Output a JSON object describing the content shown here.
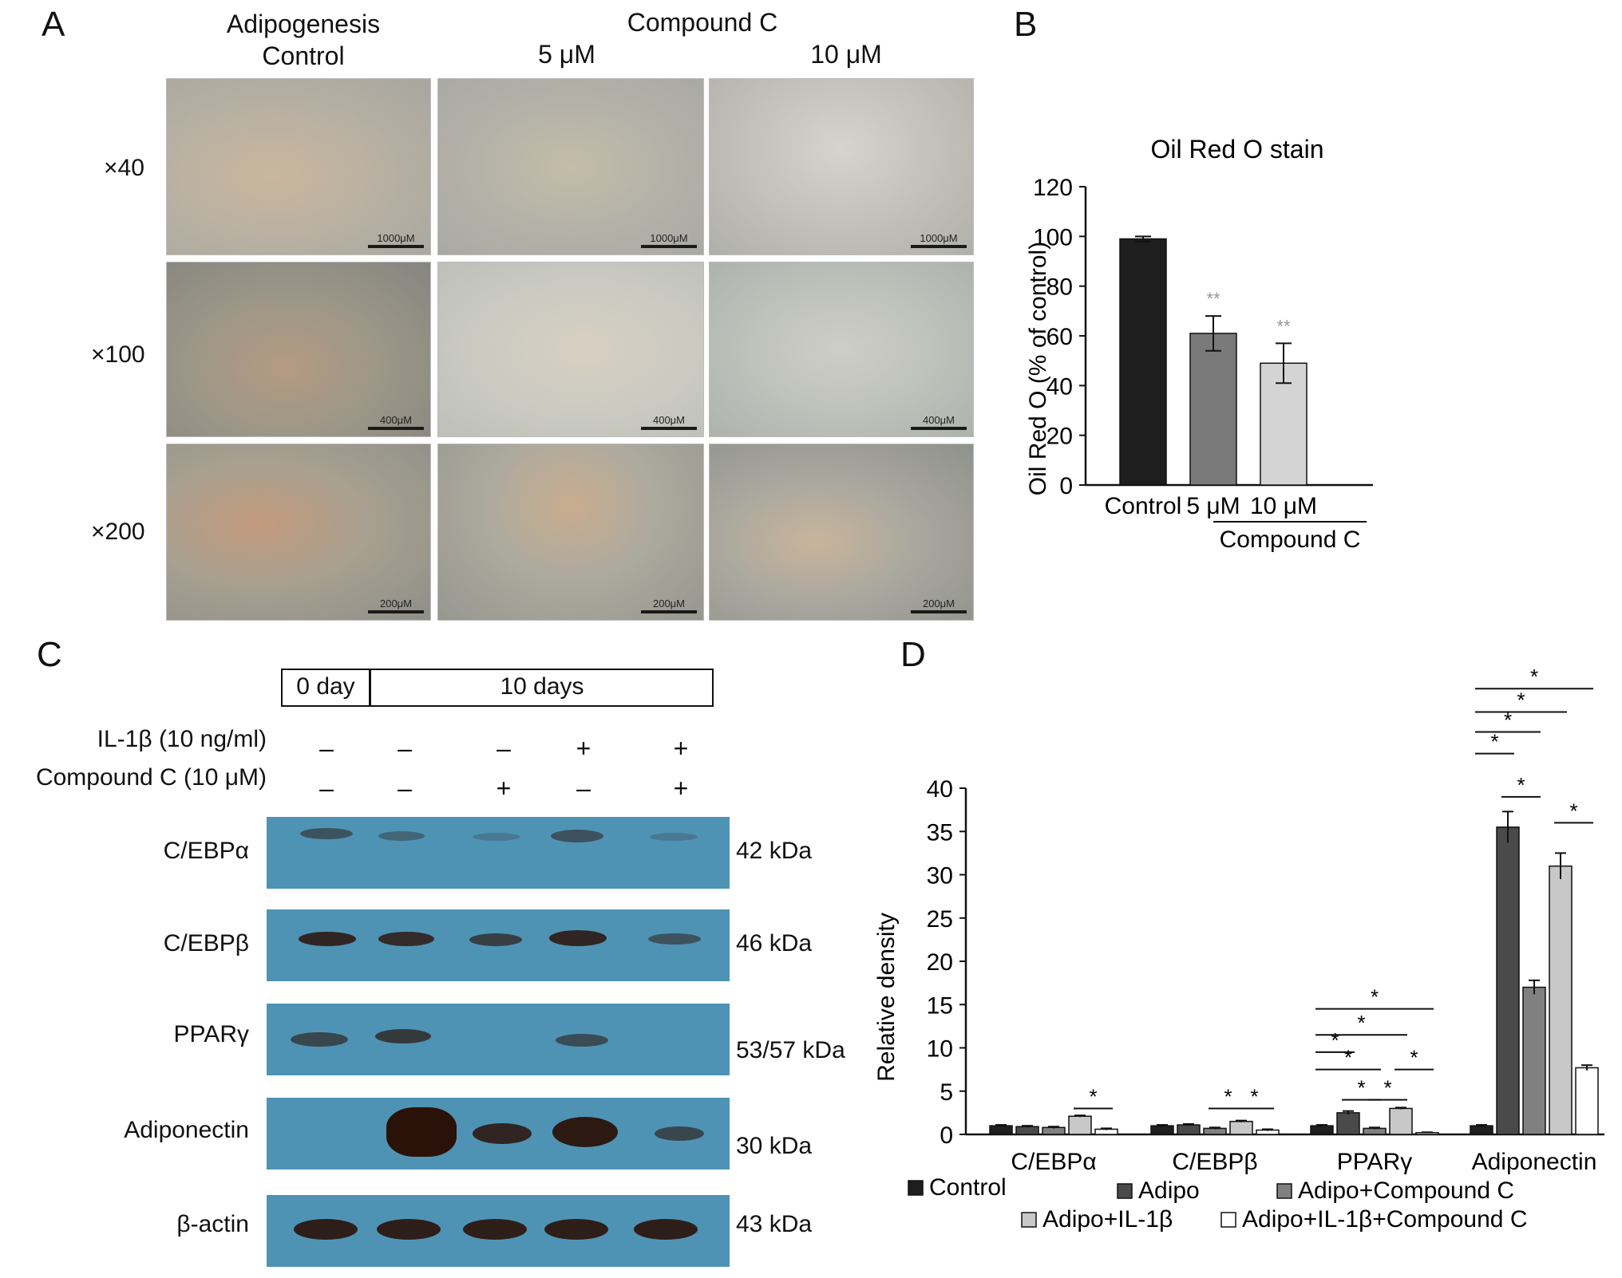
{
  "panels": {
    "a": "A",
    "b": "B",
    "c": "C",
    "d": "D"
  },
  "panelA": {
    "col_headers": [
      "Adipogenesis\nControl",
      "Compound C",
      "5 μM",
      "10 μM"
    ],
    "row_labels": [
      "×40",
      "×100",
      "×200"
    ],
    "scale_bars": [
      "1000μM",
      "400μM",
      "200μM"
    ]
  },
  "panelC": {
    "timeline": [
      "0 day",
      "10 days"
    ],
    "treatments": [
      {
        "label": "IL-1β (10 ng/ml)",
        "signs": [
          "–",
          "–",
          "–",
          "+",
          "+"
        ]
      },
      {
        "label": "Compound C (10 μM)",
        "signs": [
          "–",
          "–",
          "+",
          "–",
          "+"
        ]
      }
    ],
    "blots": [
      {
        "protein": "C/EBPα",
        "kda": "42 kDa"
      },
      {
        "protein": "C/EBPβ",
        "kda": "46 kDa"
      },
      {
        "protein": "PPARγ",
        "kda": "53/57 kDa"
      },
      {
        "protein": "Adiponectin",
        "kda": "30 kDa"
      },
      {
        "protein": "β-actin",
        "kda": "43 kDa"
      }
    ],
    "blot_color": "#4f93b4",
    "band_color": "#2a1208"
  },
  "chart_data": [
    {
      "type": "bar",
      "title": "Oil Red O stain",
      "ylabel": "Oil Red O (% of control)",
      "xlabel": "",
      "categories": [
        "Control",
        "5 μM",
        "10 μM"
      ],
      "group_label": "Compound C",
      "values": [
        99,
        61,
        49
      ],
      "errors": [
        1,
        7,
        8
      ],
      "significance": [
        "",
        "**",
        "**"
      ],
      "colors": [
        "#1e1e1e",
        "#7a7a7a",
        "#d4d4d4"
      ],
      "ylim": [
        0,
        120
      ],
      "yticks": [
        0,
        20,
        40,
        60,
        80,
        100,
        120
      ],
      "grid": false
    },
    {
      "type": "bar",
      "title": "",
      "ylabel": "Relative density",
      "xlabel": "",
      "categories": [
        "C/EBPα",
        "C/EBPβ",
        "PPARγ",
        "Adiponectin"
      ],
      "series": [
        {
          "name": "Control",
          "color": "#1e1e1e",
          "values": [
            1.0,
            1.0,
            1.0,
            1.0
          ],
          "errors": [
            0.1,
            0.1,
            0.1,
            0.1
          ]
        },
        {
          "name": "Adipo",
          "color": "#4a4a4a",
          "values": [
            0.9,
            1.1,
            2.5,
            35.5
          ],
          "errors": [
            0.1,
            0.1,
            0.2,
            1.8
          ]
        },
        {
          "name": "Adipo+Compound C",
          "color": "#808080",
          "values": [
            0.8,
            0.7,
            0.7,
            17.0
          ],
          "errors": [
            0.1,
            0.1,
            0.1,
            0.8
          ]
        },
        {
          "name": "Adipo+IL-1β",
          "color": "#c8c8c8",
          "values": [
            2.1,
            1.5,
            3.0,
            31.0
          ],
          "errors": [
            0.1,
            0.1,
            0.1,
            1.5
          ]
        },
        {
          "name": "Adipo+IL-1β+Compound C",
          "color": "#ffffff",
          "values": [
            0.6,
            0.5,
            0.2,
            7.7
          ],
          "errors": [
            0.1,
            0.1,
            0.05,
            0.3
          ]
        }
      ],
      "significance_label": "*",
      "ylim": [
        0,
        40
      ],
      "yticks": [
        0,
        5,
        10,
        15,
        20,
        25,
        30,
        35,
        40
      ],
      "legend": "bottom",
      "grid": false
    }
  ]
}
